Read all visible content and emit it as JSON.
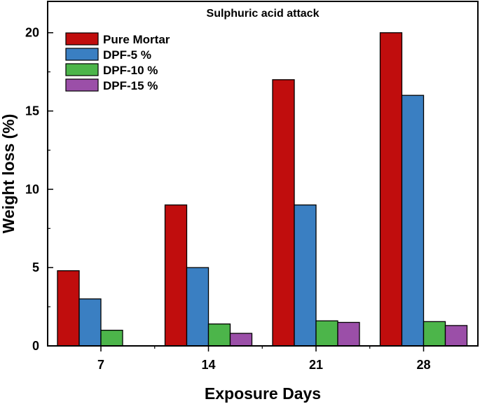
{
  "chart_data": {
    "type": "bar",
    "title": "Sulphuric acid attack",
    "xlabel": "Exposure Days",
    "ylabel": "Weight loss (%)",
    "categories": [
      "7",
      "14",
      "21",
      "28"
    ],
    "ylim": [
      0,
      22
    ],
    "yticks": [
      0,
      5,
      10,
      15,
      20
    ],
    "legend_position": "top-left",
    "grid": false,
    "series": [
      {
        "name": "Pure Mortar",
        "color": "#c00d0d",
        "values": [
          4.8,
          9.0,
          17.0,
          20.0
        ]
      },
      {
        "name": "DPF-5 %",
        "color": "#3a7fc2",
        "values": [
          3.0,
          5.0,
          9.0,
          16.0
        ]
      },
      {
        "name": "DPF-10 %",
        "color": "#4cb54a",
        "values": [
          1.0,
          1.4,
          1.6,
          1.55
        ]
      },
      {
        "name": "DPF-15 %",
        "color": "#9b4fa8",
        "values": [
          0.0,
          0.8,
          1.5,
          1.3
        ]
      }
    ]
  }
}
